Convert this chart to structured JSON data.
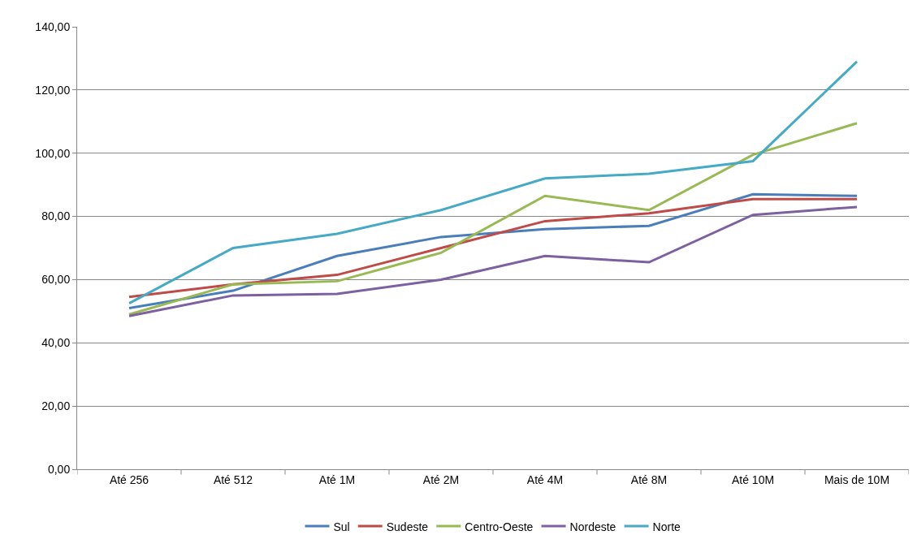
{
  "chart_data": {
    "type": "line",
    "categories": [
      "Até 256",
      "Até 512",
      "Até 1M",
      "Até 2M",
      "Até 4M",
      "Até 8M",
      "Até 10M",
      "Mais de 10M"
    ],
    "series": [
      {
        "name": "Sul",
        "color": "#4a7ebb",
        "values": [
          51,
          56.5,
          67.5,
          73.5,
          76,
          77,
          87,
          86.5
        ]
      },
      {
        "name": "Sudeste",
        "color": "#be4b48",
        "values": [
          54.5,
          58.5,
          61.5,
          70,
          78.5,
          81,
          85.5,
          85.5
        ]
      },
      {
        "name": "Centro-Oeste",
        "color": "#98b954",
        "values": [
          49,
          58.5,
          59.5,
          68.5,
          86.5,
          82,
          99.5,
          109.5
        ]
      },
      {
        "name": "Nordeste",
        "color": "#7d60a0",
        "values": [
          48.5,
          55,
          55.5,
          60,
          67.5,
          65.5,
          80.5,
          83
        ]
      },
      {
        "name": "Norte",
        "color": "#46aac5",
        "values": [
          52.5,
          70,
          74.5,
          82,
          92,
          93.5,
          97.5,
          129
        ]
      }
    ],
    "ylim": [
      0,
      140
    ],
    "yticks": [
      {
        "value": 0,
        "label": "0,00"
      },
      {
        "value": 20,
        "label": "20,00"
      },
      {
        "value": 40,
        "label": "40,00"
      },
      {
        "value": 60,
        "label": "60,00"
      },
      {
        "value": 80,
        "label": "80,00"
      },
      {
        "value": 100,
        "label": "100,00"
      },
      {
        "value": 120,
        "label": "120,00"
      },
      {
        "value": 140,
        "label": "140,00"
      }
    ],
    "grid": "y",
    "legend": "bottom",
    "marker": "none",
    "line_style": "solid"
  }
}
